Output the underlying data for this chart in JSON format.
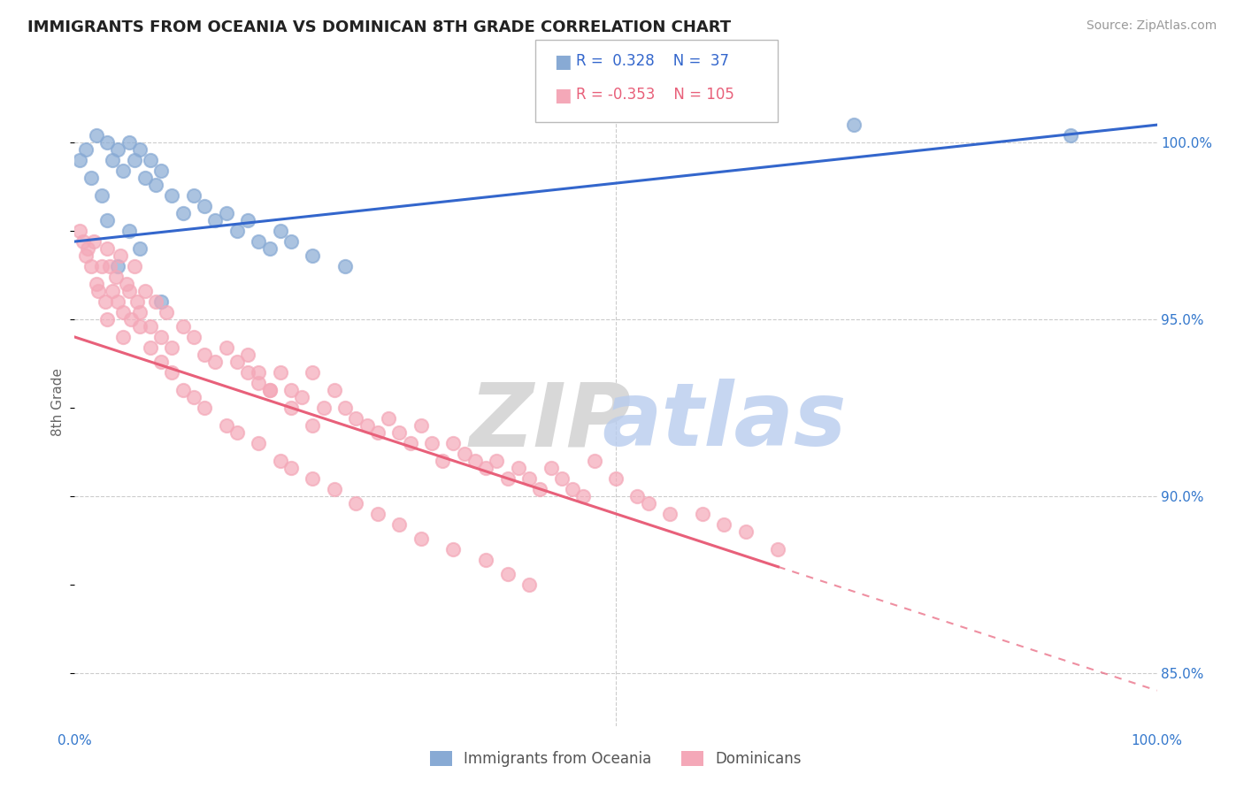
{
  "title": "IMMIGRANTS FROM OCEANIA VS DOMINICAN 8TH GRADE CORRELATION CHART",
  "source": "Source: ZipAtlas.com",
  "ylabel": "8th Grade",
  "y_ticks": [
    85.0,
    90.0,
    95.0,
    100.0
  ],
  "y_tick_labels": [
    "85.0%",
    "90.0%",
    "95.0%",
    "100.0%"
  ],
  "y_min": 83.5,
  "y_max": 101.8,
  "x_min": 0.0,
  "x_max": 100.0,
  "blue_R": 0.328,
  "blue_N": 37,
  "pink_R": -0.353,
  "pink_N": 105,
  "blue_color": "#88aad4",
  "pink_color": "#f4a8b8",
  "blue_line_color": "#3366cc",
  "pink_line_color": "#e8607a",
  "legend_label_blue": "Immigrants from Oceania",
  "legend_label_pink": "Dominicans",
  "blue_scatter_x": [
    1.0,
    2.0,
    3.0,
    3.5,
    4.0,
    4.5,
    5.0,
    5.5,
    6.0,
    6.5,
    7.0,
    7.5,
    8.0,
    9.0,
    10.0,
    11.0,
    12.0,
    13.0,
    14.0,
    15.0,
    16.0,
    17.0,
    18.0,
    19.0,
    20.0,
    22.0,
    25.0,
    0.5,
    1.5,
    2.5,
    3.0,
    4.0,
    5.0,
    6.0,
    8.0,
    72.0,
    92.0
  ],
  "blue_scatter_y": [
    99.8,
    100.2,
    100.0,
    99.5,
    99.8,
    99.2,
    100.0,
    99.5,
    99.8,
    99.0,
    99.5,
    98.8,
    99.2,
    98.5,
    98.0,
    98.5,
    98.2,
    97.8,
    98.0,
    97.5,
    97.8,
    97.2,
    97.0,
    97.5,
    97.2,
    96.8,
    96.5,
    99.5,
    99.0,
    98.5,
    97.8,
    96.5,
    97.5,
    97.0,
    95.5,
    100.5,
    100.2
  ],
  "pink_scatter_x": [
    0.5,
    0.8,
    1.0,
    1.2,
    1.5,
    1.8,
    2.0,
    2.2,
    2.5,
    2.8,
    3.0,
    3.2,
    3.5,
    3.8,
    4.0,
    4.2,
    4.5,
    4.8,
    5.0,
    5.2,
    5.5,
    5.8,
    6.0,
    6.5,
    7.0,
    7.5,
    8.0,
    8.5,
    9.0,
    10.0,
    11.0,
    12.0,
    13.0,
    14.0,
    15.0,
    16.0,
    17.0,
    18.0,
    19.0,
    20.0,
    21.0,
    22.0,
    23.0,
    24.0,
    25.0,
    26.0,
    27.0,
    28.0,
    29.0,
    30.0,
    31.0,
    32.0,
    33.0,
    34.0,
    35.0,
    36.0,
    37.0,
    38.0,
    39.0,
    40.0,
    41.0,
    42.0,
    43.0,
    44.0,
    45.0,
    46.0,
    47.0,
    48.0,
    50.0,
    52.0,
    53.0,
    55.0,
    58.0,
    60.0,
    62.0,
    65.0,
    3.0,
    4.5,
    6.0,
    7.0,
    8.0,
    9.0,
    10.0,
    11.0,
    12.0,
    14.0,
    15.0,
    17.0,
    19.0,
    20.0,
    22.0,
    24.0,
    26.0,
    28.0,
    30.0,
    32.0,
    35.0,
    38.0,
    40.0,
    42.0,
    16.0,
    17.0,
    18.0,
    20.0,
    22.0
  ],
  "pink_scatter_y": [
    97.5,
    97.2,
    96.8,
    97.0,
    96.5,
    97.2,
    96.0,
    95.8,
    96.5,
    95.5,
    97.0,
    96.5,
    95.8,
    96.2,
    95.5,
    96.8,
    95.2,
    96.0,
    95.8,
    95.0,
    96.5,
    95.5,
    95.2,
    95.8,
    94.8,
    95.5,
    94.5,
    95.2,
    94.2,
    94.8,
    94.5,
    94.0,
    93.8,
    94.2,
    93.8,
    93.5,
    93.2,
    93.0,
    93.5,
    93.0,
    92.8,
    93.5,
    92.5,
    93.0,
    92.5,
    92.2,
    92.0,
    91.8,
    92.2,
    91.8,
    91.5,
    92.0,
    91.5,
    91.0,
    91.5,
    91.2,
    91.0,
    90.8,
    91.0,
    90.5,
    90.8,
    90.5,
    90.2,
    90.8,
    90.5,
    90.2,
    90.0,
    91.0,
    90.5,
    90.0,
    89.8,
    89.5,
    89.5,
    89.2,
    89.0,
    88.5,
    95.0,
    94.5,
    94.8,
    94.2,
    93.8,
    93.5,
    93.0,
    92.8,
    92.5,
    92.0,
    91.8,
    91.5,
    91.0,
    90.8,
    90.5,
    90.2,
    89.8,
    89.5,
    89.2,
    88.8,
    88.5,
    88.2,
    87.8,
    87.5,
    94.0,
    93.5,
    93.0,
    92.5,
    92.0
  ],
  "pink_solid_end_x": 65.0,
  "blue_line_x0": 0.0,
  "blue_line_x1": 100.0,
  "blue_line_y0": 97.2,
  "blue_line_y1": 100.5,
  "pink_line_x0": 0.0,
  "pink_line_x1": 100.0,
  "pink_line_y0": 94.5,
  "pink_line_y1": 84.5
}
